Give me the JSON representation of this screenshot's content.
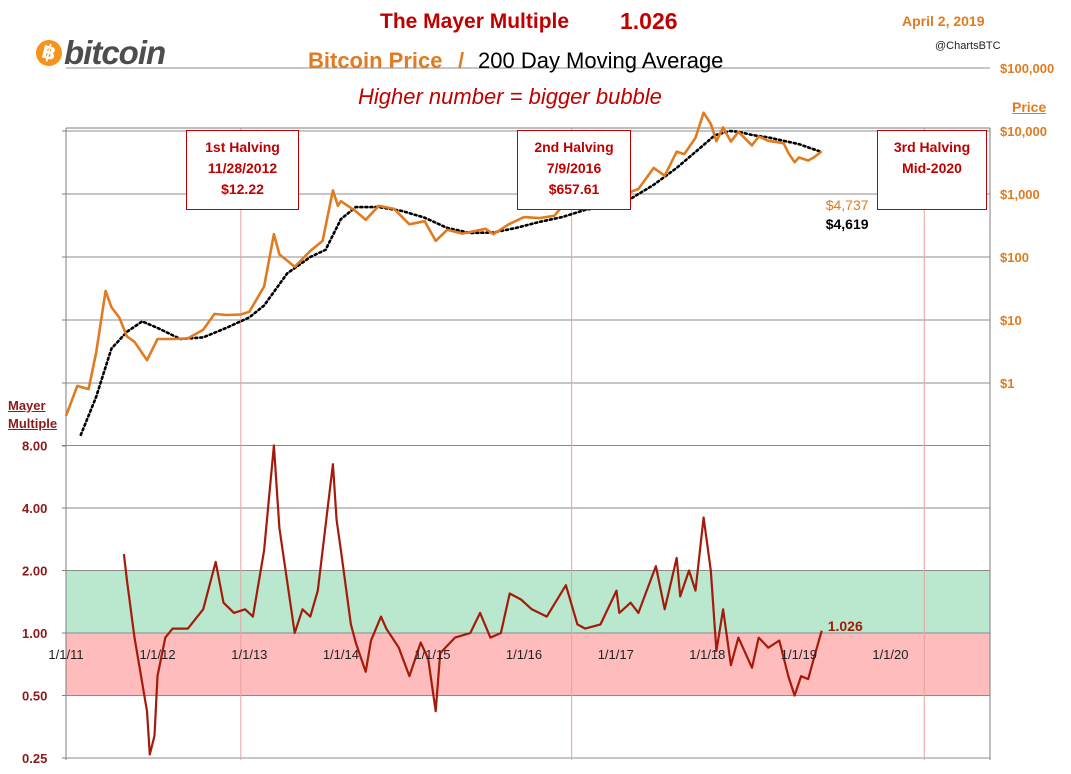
{
  "header": {
    "title": "The Mayer Multiple",
    "title_value": "1.026",
    "subtitle_part1": "Bitcoin Price",
    "subtitle_sep": "/",
    "subtitle_part2": "200 Day Moving Average",
    "tagline": "Higher number = bigger bubble",
    "date": "April 2, 2019",
    "handle": "@ChartsBTC",
    "logo_text": "bitcoin",
    "logo_symbol": "฿"
  },
  "annotations": {
    "halving1": {
      "line1": "1st Halving",
      "line2": "11/28/2012",
      "line3": "$12.22"
    },
    "halving2": {
      "line1": "2nd Halving",
      "line2": "7/9/2016",
      "line3": "$657.61"
    },
    "halving3": {
      "line1": "3rd Halving",
      "line2": "Mid-2020"
    },
    "price_end_label": "$4,737",
    "ma_end_label": "$4,619",
    "multiple_end_label": "1.026"
  },
  "axes": {
    "price_title": "Price",
    "multiple_title_line1": "Mayer",
    "multiple_title_line2": "Multiple"
  },
  "colors": {
    "price": "#e07b20",
    "moving_average": "#000000",
    "multiple": "#a51b0b",
    "green_band": "#b9e8cf",
    "red_band": "#ffbcbc",
    "halving_line": "#e8a0a0",
    "grid": "#8c8c8c"
  },
  "chart_data": [
    {
      "type": "line",
      "title": "Bitcoin Price / 200 Day Moving Average",
      "y_scale": "log",
      "ylabel": "Price",
      "ylim": [
        0.1,
        100000
      ],
      "y_ticks": [
        1,
        10,
        100,
        1000,
        10000,
        100000
      ],
      "y_tick_labels": [
        "$1",
        "$10",
        "$100",
        "$1,000",
        "$10,000",
        "$100,000"
      ],
      "xlim": [
        "2011-01-01",
        "2021-02-01"
      ],
      "series": [
        {
          "name": "Bitcoin Price",
          "points": [
            [
              "2011-01-01",
              0.3
            ],
            [
              "2011-02-15",
              0.9
            ],
            [
              "2011-04-01",
              0.8
            ],
            [
              "2011-05-01",
              3.0
            ],
            [
              "2011-06-08",
              29
            ],
            [
              "2011-07-01",
              16
            ],
            [
              "2011-08-01",
              11
            ],
            [
              "2011-09-01",
              5.5
            ],
            [
              "2011-10-01",
              4.5
            ],
            [
              "2011-11-20",
              2.3
            ],
            [
              "2012-01-01",
              5.0
            ],
            [
              "2012-03-01",
              5.0
            ],
            [
              "2012-05-01",
              5.1
            ],
            [
              "2012-07-01",
              7.0
            ],
            [
              "2012-08-15",
              12.5
            ],
            [
              "2012-10-01",
              12.0
            ],
            [
              "2012-11-28",
              12.22
            ],
            [
              "2013-01-01",
              13.5
            ],
            [
              "2013-03-01",
              34
            ],
            [
              "2013-04-09",
              230
            ],
            [
              "2013-05-01",
              110
            ],
            [
              "2013-07-01",
              70
            ],
            [
              "2013-09-01",
              125
            ],
            [
              "2013-10-20",
              180
            ],
            [
              "2013-11-30",
              1140
            ],
            [
              "2013-12-20",
              650
            ],
            [
              "2014-01-01",
              770
            ],
            [
              "2014-02-25",
              550
            ],
            [
              "2014-04-10",
              390
            ],
            [
              "2014-06-01",
              650
            ],
            [
              "2014-08-01",
              580
            ],
            [
              "2014-10-01",
              330
            ],
            [
              "2014-12-01",
              370
            ],
            [
              "2015-01-14",
              180
            ],
            [
              "2015-03-01",
              270
            ],
            [
              "2015-05-01",
              235
            ],
            [
              "2015-08-01",
              280
            ],
            [
              "2015-09-01",
              230
            ],
            [
              "2015-11-01",
              330
            ],
            [
              "2016-01-01",
              430
            ],
            [
              "2016-03-01",
              415
            ],
            [
              "2016-05-01",
              450
            ],
            [
              "2016-06-16",
              740
            ],
            [
              "2016-07-09",
              657.61
            ],
            [
              "2016-09-01",
              605
            ],
            [
              "2016-11-01",
              700
            ],
            [
              "2017-01-01",
              1000
            ],
            [
              "2017-02-01",
              980
            ],
            [
              "2017-04-01",
              1200
            ],
            [
              "2017-06-01",
              2600
            ],
            [
              "2017-07-15",
              1950
            ],
            [
              "2017-09-01",
              4700
            ],
            [
              "2017-10-01",
              4300
            ],
            [
              "2017-11-15",
              7800
            ],
            [
              "2017-12-17",
              19500
            ],
            [
              "2018-01-15",
              13000
            ],
            [
              "2018-02-06",
              6900
            ],
            [
              "2018-03-05",
              11400
            ],
            [
              "2018-04-05",
              6800
            ],
            [
              "2018-05-05",
              9700
            ],
            [
              "2018-06-28",
              5900
            ],
            [
              "2018-07-25",
              8200
            ],
            [
              "2018-09-01",
              7000
            ],
            [
              "2018-11-01",
              6400
            ],
            [
              "2018-11-20",
              4500
            ],
            [
              "2018-12-15",
              3200
            ],
            [
              "2019-01-01",
              3800
            ],
            [
              "2019-02-07",
              3400
            ],
            [
              "2019-03-01",
              3800
            ],
            [
              "2019-04-02",
              4737
            ]
          ]
        },
        {
          "name": "200 Day Moving Average",
          "points": [
            [
              "2011-03-01",
              0.15
            ],
            [
              "2011-05-01",
              0.6
            ],
            [
              "2011-07-01",
              3.5
            ],
            [
              "2011-09-01",
              6.5
            ],
            [
              "2011-11-01",
              9.5
            ],
            [
              "2012-01-01",
              7.5
            ],
            [
              "2012-04-01",
              5.0
            ],
            [
              "2012-07-01",
              5.3
            ],
            [
              "2012-10-01",
              7.5
            ],
            [
              "2013-01-01",
              11
            ],
            [
              "2013-03-01",
              17
            ],
            [
              "2013-06-01",
              55
            ],
            [
              "2013-09-01",
              100
            ],
            [
              "2013-11-01",
              130
            ],
            [
              "2014-01-01",
              400
            ],
            [
              "2014-03-01",
              620
            ],
            [
              "2014-06-01",
              620
            ],
            [
              "2014-09-01",
              540
            ],
            [
              "2014-12-01",
              420
            ],
            [
              "2015-03-01",
              290
            ],
            [
              "2015-06-01",
              240
            ],
            [
              "2015-09-01",
              245
            ],
            [
              "2015-12-01",
              290
            ],
            [
              "2016-03-01",
              360
            ],
            [
              "2016-06-01",
              430
            ],
            [
              "2016-09-01",
              560
            ],
            [
              "2016-12-01",
              650
            ],
            [
              "2017-03-01",
              840
            ],
            [
              "2017-06-01",
              1400
            ],
            [
              "2017-09-01",
              2600
            ],
            [
              "2017-12-01",
              5300
            ],
            [
              "2018-02-01",
              8600
            ],
            [
              "2018-04-01",
              10000
            ],
            [
              "2018-05-01",
              9800
            ],
            [
              "2018-07-01",
              8600
            ],
            [
              "2018-09-01",
              7900
            ],
            [
              "2018-11-01",
              7000
            ],
            [
              "2019-01-01",
              6200
            ],
            [
              "2019-04-02",
              4619
            ]
          ]
        }
      ]
    },
    {
      "type": "line",
      "title": "Mayer Multiple",
      "y_scale": "log2",
      "ylim": [
        0.25,
        8
      ],
      "y_ticks": [
        0.25,
        0.5,
        1,
        2,
        4,
        8
      ],
      "y_tick_labels": [
        "0.25",
        "0.50",
        "1.00",
        "2.00",
        "4.00",
        "8.00"
      ],
      "x_tick_labels": [
        "1/1/11",
        "1/1/12",
        "1/1/13",
        "1/1/14",
        "1/1/15",
        "1/1/16",
        "1/1/17",
        "1/1/18",
        "1/1/19",
        "1/1/20"
      ],
      "bands": [
        {
          "from": 1.0,
          "to": 2.0,
          "color": "green"
        },
        {
          "from": 0.5,
          "to": 1.0,
          "color": "red"
        }
      ],
      "series": [
        {
          "name": "Mayer Multiple",
          "points": [
            [
              "2011-08-20",
              2.4
            ],
            [
              "2011-09-01",
              1.8
            ],
            [
              "2011-10-01",
              0.95
            ],
            [
              "2011-10-20",
              0.7
            ],
            [
              "2011-11-20",
              0.42
            ],
            [
              "2011-12-01",
              0.26
            ],
            [
              "2011-12-20",
              0.32
            ],
            [
              "2012-01-01",
              0.62
            ],
            [
              "2012-02-01",
              0.95
            ],
            [
              "2012-03-01",
              1.05
            ],
            [
              "2012-05-01",
              1.05
            ],
            [
              "2012-07-01",
              1.3
            ],
            [
              "2012-08-20",
              2.2
            ],
            [
              "2012-09-20",
              1.4
            ],
            [
              "2012-11-01",
              1.25
            ],
            [
              "2012-12-15",
              1.3
            ],
            [
              "2013-01-15",
              1.2
            ],
            [
              "2013-03-01",
              2.5
            ],
            [
              "2013-04-09",
              8.0
            ],
            [
              "2013-05-01",
              3.2
            ],
            [
              "2013-07-01",
              1.0
            ],
            [
              "2013-08-01",
              1.3
            ],
            [
              "2013-09-01",
              1.2
            ],
            [
              "2013-10-01",
              1.6
            ],
            [
              "2013-11-30",
              6.5
            ],
            [
              "2013-12-15",
              3.5
            ],
            [
              "2014-01-01",
              2.5
            ],
            [
              "2014-02-10",
              1.1
            ],
            [
              "2014-03-01",
              0.9
            ],
            [
              "2014-04-10",
              0.65
            ],
            [
              "2014-05-01",
              0.92
            ],
            [
              "2014-06-10",
              1.2
            ],
            [
              "2014-07-01",
              1.05
            ],
            [
              "2014-08-20",
              0.85
            ],
            [
              "2014-10-01",
              0.62
            ],
            [
              "2014-11-15",
              0.9
            ],
            [
              "2014-12-15",
              0.75
            ],
            [
              "2015-01-14",
              0.42
            ],
            [
              "2015-02-01",
              0.8
            ],
            [
              "2015-04-01",
              0.95
            ],
            [
              "2015-06-01",
              1.0
            ],
            [
              "2015-07-10",
              1.25
            ],
            [
              "2015-08-20",
              0.95
            ],
            [
              "2015-10-01",
              1.0
            ],
            [
              "2015-11-05",
              1.55
            ],
            [
              "2015-12-20",
              1.45
            ],
            [
              "2016-02-01",
              1.3
            ],
            [
              "2016-04-01",
              1.2
            ],
            [
              "2016-06-16",
              1.7
            ],
            [
              "2016-08-01",
              1.1
            ],
            [
              "2016-09-01",
              1.05
            ],
            [
              "2016-11-01",
              1.1
            ],
            [
              "2017-01-04",
              1.6
            ],
            [
              "2017-01-15",
              1.25
            ],
            [
              "2017-03-01",
              1.4
            ],
            [
              "2017-04-01",
              1.25
            ],
            [
              "2017-06-10",
              2.1
            ],
            [
              "2017-07-15",
              1.3
            ],
            [
              "2017-09-01",
              2.3
            ],
            [
              "2017-09-15",
              1.5
            ],
            [
              "2017-10-20",
              2.0
            ],
            [
              "2017-11-15",
              1.6
            ],
            [
              "2017-12-17",
              3.6
            ],
            [
              "2018-01-15",
              2.0
            ],
            [
              "2018-02-06",
              0.82
            ],
            [
              "2018-03-05",
              1.3
            ],
            [
              "2018-04-05",
              0.7
            ],
            [
              "2018-05-05",
              0.95
            ],
            [
              "2018-06-28",
              0.68
            ],
            [
              "2018-07-25",
              0.95
            ],
            [
              "2018-09-01",
              0.85
            ],
            [
              "2018-10-15",
              0.92
            ],
            [
              "2018-11-20",
              0.62
            ],
            [
              "2018-12-15",
              0.5
            ],
            [
              "2019-01-10",
              0.62
            ],
            [
              "2019-02-07",
              0.6
            ],
            [
              "2019-03-01",
              0.75
            ],
            [
              "2019-04-02",
              1.026
            ]
          ]
        }
      ]
    }
  ]
}
